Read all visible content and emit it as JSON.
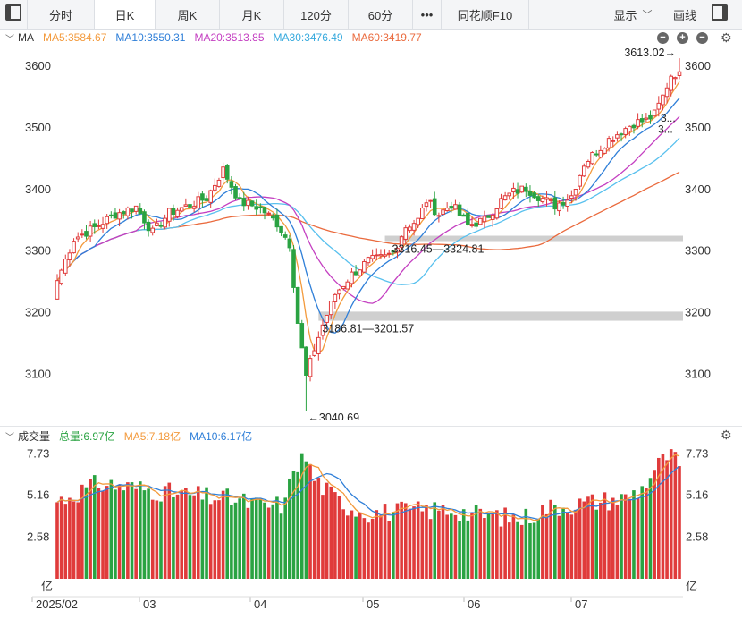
{
  "toolbar": {
    "tabs": [
      {
        "label": "分时"
      },
      {
        "label": "日K"
      },
      {
        "label": "周K"
      },
      {
        "label": "月K"
      },
      {
        "label": "120分"
      },
      {
        "label": "60分"
      },
      {
        "label": "•••"
      },
      {
        "label": "同花顺F10"
      }
    ],
    "active_tab": "日K",
    "display_label": "显示",
    "draw_label": "画线"
  },
  "ma_legend": {
    "title": "MA",
    "ma5": "MA5:3584.67",
    "ma10": "MA10:3550.31",
    "ma20": "MA20:3513.85",
    "ma30": "MA30:3476.49",
    "ma60": "MA60:3419.77"
  },
  "vol_legend": {
    "title": "成交量",
    "total": "总量:6.97亿",
    "ma5": "MA5:7.18亿",
    "ma10": "MA10:6.17亿"
  },
  "colors": {
    "up": "#e03b3b",
    "down": "#2aa342",
    "ma5": "#f39a3c",
    "ma10": "#2f7fd8",
    "ma20": "#c43fc1",
    "ma30": "#58c0ee",
    "ma60": "#ea6a3d",
    "support_band": "#cfcfcf"
  },
  "chart_data": [
    {
      "type": "candlestick",
      "y_axis_ticks": [
        "3600",
        "3500",
        "3400",
        "3300",
        "3200",
        "3100"
      ],
      "y_ticks_values": [
        3600,
        3500,
        3400,
        3300,
        3200,
        3100
      ],
      "ylim": [
        3025,
        3632
      ],
      "x_labels": [
        "2025/02",
        "03",
        "04",
        "05",
        "06",
        "07"
      ],
      "annotations": {
        "high": "3613.02→",
        "low": "←3040.69",
        "gap1": "3316.45—3324.81",
        "gap2": "3186.81—3201.57",
        "ma_tag_1": "3...",
        "ma_tag_2": "3..."
      },
      "support_bands": [
        [
          3316.45,
          3324.81
        ],
        [
          3186.81,
          3201.57
        ]
      ],
      "close_keypoints": [
        [
          0,
          3252
        ],
        [
          4,
          3320
        ],
        [
          9,
          3338
        ],
        [
          14,
          3360
        ],
        [
          19,
          3372
        ],
        [
          23,
          3330
        ],
        [
          27,
          3362
        ],
        [
          32,
          3375
        ],
        [
          36,
          3386
        ],
        [
          40,
          3432
        ],
        [
          44,
          3380
        ],
        [
          49,
          3370
        ],
        [
          53,
          3345
        ],
        [
          56,
          3312
        ],
        [
          58,
          3184
        ],
        [
          60,
          3096
        ],
        [
          62,
          3141
        ],
        [
          64,
          3180
        ],
        [
          67,
          3230
        ],
        [
          71,
          3262
        ],
        [
          75,
          3284
        ],
        [
          79,
          3290
        ],
        [
          81,
          3298
        ],
        [
          84,
          3340
        ],
        [
          87,
          3350
        ],
        [
          89,
          3382
        ],
        [
          92,
          3360
        ],
        [
          95,
          3376
        ],
        [
          99,
          3342
        ],
        [
          103,
          3350
        ],
        [
          107,
          3382
        ],
        [
          110,
          3396
        ],
        [
          113,
          3402
        ],
        [
          117,
          3385
        ],
        [
          120,
          3374
        ],
        [
          124,
          3390
        ],
        [
          127,
          3442
        ],
        [
          130,
          3462
        ],
        [
          133,
          3481
        ],
        [
          136,
          3495
        ],
        [
          139,
          3508
        ],
        [
          142,
          3512
        ],
        [
          144,
          3522
        ],
        [
          146,
          3551
        ],
        [
          148,
          3586
        ],
        [
          150,
          3591
        ]
      ],
      "ma_last": {
        "ma5": 3584.67,
        "ma10": 3550.31,
        "ma20": 3513.85,
        "ma30": 3476.49,
        "ma60": 3419.77
      }
    },
    {
      "type": "bar",
      "y_axis_ticks": [
        "7.73",
        "5.16",
        "2.58"
      ],
      "y_ticks_values": [
        7.73,
        5.16,
        2.58
      ],
      "unit": "亿",
      "ylim": [
        0,
        8.3
      ],
      "volume_keypoints": [
        [
          0,
          4.8
        ],
        [
          10,
          5.9
        ],
        [
          20,
          5.6
        ],
        [
          30,
          5.2
        ],
        [
          40,
          5.0
        ],
        [
          50,
          4.5
        ],
        [
          55,
          4.6
        ],
        [
          57,
          7.0
        ],
        [
          60,
          7.5
        ],
        [
          62,
          6.2
        ],
        [
          66,
          5.2
        ],
        [
          70,
          4.5
        ],
        [
          75,
          4.1
        ],
        [
          85,
          4.2
        ],
        [
          95,
          4.3
        ],
        [
          100,
          4.0
        ],
        [
          105,
          3.9
        ],
        [
          112,
          3.7
        ],
        [
          118,
          4.4
        ],
        [
          125,
          4.6
        ],
        [
          130,
          4.8
        ],
        [
          137,
          5.0
        ],
        [
          141,
          5.6
        ],
        [
          144,
          6.8
        ],
        [
          147,
          7.6
        ],
        [
          150,
          7.3
        ]
      ],
      "total_volume": 6.97
    }
  ]
}
